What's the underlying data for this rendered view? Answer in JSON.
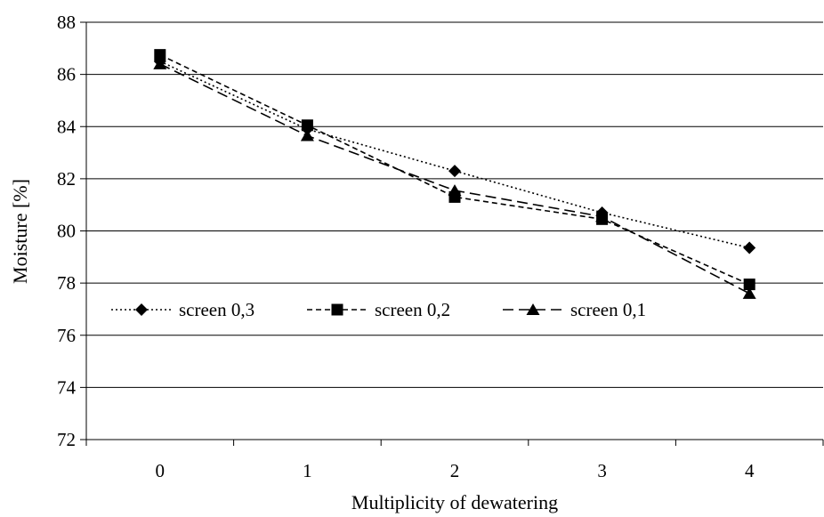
{
  "chart_data": {
    "type": "line",
    "x": [
      0,
      1,
      2,
      3,
      4
    ],
    "series": [
      {
        "name": "screen 0,3",
        "values": [
          86.5,
          83.9,
          82.3,
          80.7,
          79.35
        ],
        "line_style": "dotted",
        "marker": "diamond"
      },
      {
        "name": "screen 0,2",
        "values": [
          86.75,
          84.05,
          81.3,
          80.45,
          77.95
        ],
        "line_style": "short-dash",
        "marker": "square"
      },
      {
        "name": "screen 0,1",
        "values": [
          86.4,
          83.65,
          81.55,
          80.55,
          77.6
        ],
        "line_style": "long-dash",
        "marker": "triangle"
      }
    ],
    "xlabel": "Multiplicity of dewatering",
    "ylabel": "Moisture [%]",
    "ylim": [
      72,
      88
    ],
    "yticks": [
      72,
      74,
      76,
      78,
      80,
      82,
      84,
      86,
      88
    ],
    "xtick_labels": [
      "0",
      "1",
      "2",
      "3",
      "4"
    ],
    "grid": "horizontal",
    "legend_position": "inside-left"
  }
}
